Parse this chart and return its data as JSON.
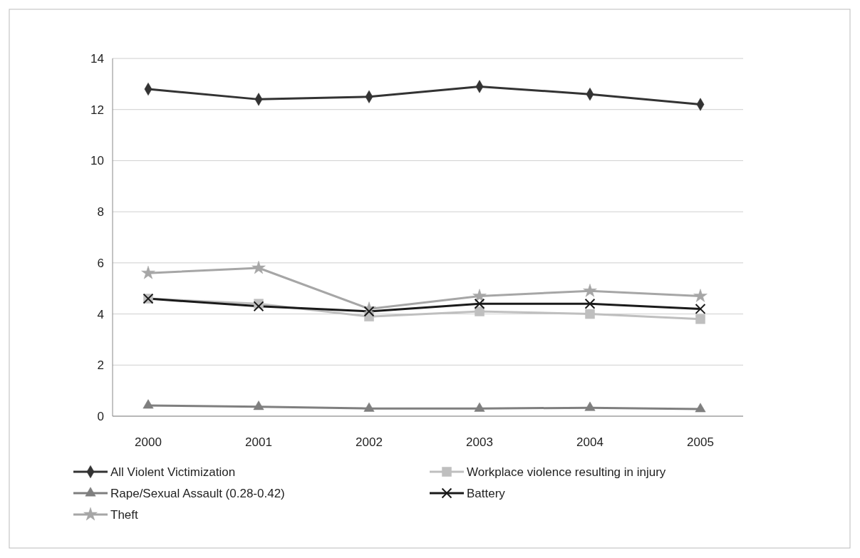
{
  "chart_data": {
    "type": "line",
    "categories": [
      "2000",
      "2001",
      "2002",
      "2003",
      "2004",
      "2005"
    ],
    "series": [
      {
        "name": "All Violent Victimization",
        "color": "#333333",
        "marker": "diamond",
        "values": [
          12.8,
          12.4,
          12.5,
          12.9,
          12.6,
          12.2
        ]
      },
      {
        "name": "Workplace violence resulting in injury",
        "color": "#bfbfbf",
        "marker": "square",
        "values": [
          4.6,
          4.4,
          3.9,
          4.1,
          4.0,
          3.8
        ]
      },
      {
        "name": "Rape/Sexual Assault (0.28-0.42)",
        "color": "#7f7f7f",
        "marker": "triangle",
        "values": [
          0.42,
          0.37,
          0.3,
          0.3,
          0.33,
          0.28
        ]
      },
      {
        "name": "Battery",
        "color": "#1a1a1a",
        "marker": "cross",
        "values": [
          4.6,
          4.3,
          4.1,
          4.4,
          4.4,
          4.2
        ]
      },
      {
        "name": "Theft",
        "color": "#a6a6a6",
        "marker": "star",
        "values": [
          5.6,
          5.8,
          4.2,
          4.7,
          4.9,
          4.7
        ]
      }
    ],
    "ylim": [
      0,
      14
    ],
    "yticks": [
      0,
      2,
      4,
      6,
      8,
      10,
      12,
      14
    ],
    "grid": "y",
    "legend": "bottom"
  }
}
